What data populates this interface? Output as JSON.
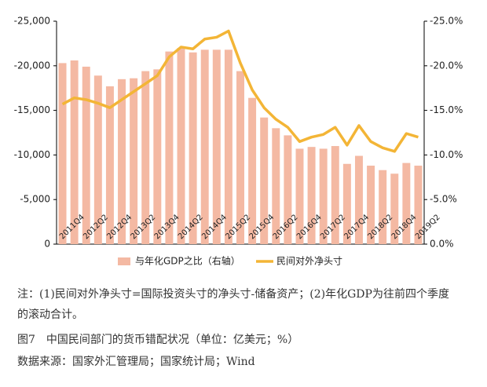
{
  "chart_data": {
    "type": "bar",
    "categories": [
      "2011Q4",
      null,
      "2012Q2",
      null,
      "2012Q4",
      null,
      "2013Q2",
      null,
      "2013Q4",
      null,
      "2014Q2",
      null,
      "2014Q4",
      null,
      "2015Q2",
      null,
      "2015Q4",
      null,
      "2016Q2",
      null,
      "2016Q4",
      null,
      "2017Q2",
      null,
      "2017Q4",
      null,
      "2018Q2",
      null,
      "2018Q4",
      null,
      "2019Q2"
    ],
    "series": [
      {
        "name": "与年化GDP之比（右轴）",
        "type": "bar",
        "axis": "y2",
        "color": "#f4b9a3",
        "values": [
          -20.3,
          -20.6,
          -19.9,
          -18.9,
          -17.7,
          -18.5,
          -18.6,
          -19.4,
          -19.6,
          -21.6,
          -22.0,
          -21.5,
          -21.8,
          -21.8,
          -21.8,
          -19.4,
          -16.4,
          -14.2,
          -13.0,
          -12.2,
          -10.7,
          -10.9,
          -10.7,
          -11.0,
          -9.0,
          -9.9,
          -8.8,
          -8.3,
          -7.9,
          -9.1,
          -8.8
        ]
      },
      {
        "name": "民间对外净头寸",
        "type": "line",
        "color": "#f3b536",
        "values": [
          -15700,
          -16400,
          -16200,
          -15800,
          -15300,
          -16200,
          -17100,
          -18000,
          -18900,
          -21000,
          -22100,
          -21900,
          -23000,
          -23200,
          -23900,
          -20300,
          -17300,
          -15300,
          -14000,
          -13100,
          -11500,
          -12000,
          -12300,
          -13100,
          -11100,
          -13300,
          -11500,
          -10800,
          -10400,
          -12400,
          -12000
        ]
      }
    ],
    "ylim": [
      0,
      -25000
    ],
    "yticks": [
      {
        "value": -25000,
        "label": "-25,000"
      },
      {
        "value": -20000,
        "label": "-20,000"
      },
      {
        "value": -15000,
        "label": "-15,000"
      },
      {
        "value": -10000,
        "label": "-10,000"
      },
      {
        "value": -5000,
        "label": "-5,000"
      },
      0
    ],
    "y2lim": [
      0,
      -25
    ],
    "y2ticks": [
      {
        "value": -25,
        "label": "-25.0%"
      },
      {
        "value": -20,
        "label": "-20.0%"
      },
      {
        "value": -15,
        "label": "-15.0%"
      },
      {
        "value": -10,
        "label": "-10.0%"
      },
      {
        "value": -5,
        "label": "-5.0%"
      },
      {
        "value": 0,
        "label": "0.0%"
      }
    ],
    "grid": false,
    "legend": "bottom",
    "note": "注：(1)民间对外净头寸=国际投资头寸的净头寸-储备资产；(2)年化GDP为往前四个季度的滚动合计。",
    "caption": "图7　中国民间部门的货币错配状况（单位：亿美元；%）",
    "source": "数据来源：国家外汇管理局；国家统计局；Wind"
  }
}
